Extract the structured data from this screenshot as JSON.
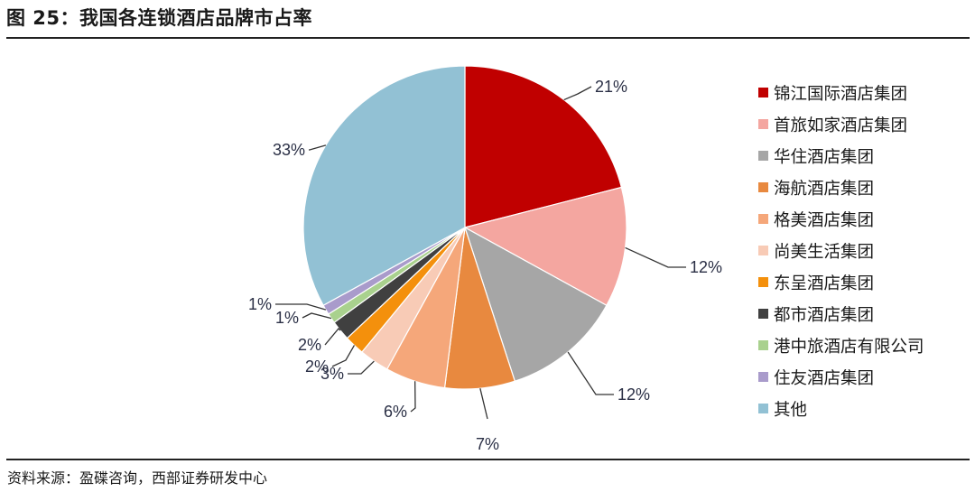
{
  "header": {
    "title": "图 25：我国各连锁酒店品牌市占率"
  },
  "footer": {
    "source": "资料来源：盈碟咨询，西部证券研发中心"
  },
  "chart_data": {
    "type": "pie",
    "title": "",
    "start_angle_deg": 0,
    "direction": "clockwise",
    "legend_position": "right",
    "slices": [
      {
        "name": "锦江国际酒店集团",
        "value": 21,
        "label": "21%",
        "color": "#C00000"
      },
      {
        "name": "首旅如家酒店集团",
        "value": 12,
        "label": "12%",
        "color": "#F4A6A0"
      },
      {
        "name": "华住酒店集团",
        "value": 12,
        "label": "12%",
        "color": "#A6A6A6"
      },
      {
        "name": "海航酒店集团",
        "value": 7,
        "label": "7%",
        "color": "#E8893F"
      },
      {
        "name": "格美酒店集团",
        "value": 6,
        "label": "6%",
        "color": "#F5A77A"
      },
      {
        "name": "尚美生活集团",
        "value": 3,
        "label": "3%",
        "color": "#F8CBB6"
      },
      {
        "name": "东呈酒店集团",
        "value": 2,
        "label": "2%",
        "color": "#F4900C"
      },
      {
        "name": "都市酒店集团",
        "value": 2,
        "label": "2%",
        "color": "#404040"
      },
      {
        "name": "港中旅酒店有限公司",
        "value": 1,
        "label": "1%",
        "color": "#A9D18E"
      },
      {
        "name": "住友酒店集团",
        "value": 1,
        "label": "1%",
        "color": "#A99BCB"
      },
      {
        "name": "其他",
        "value": 33,
        "label": "33%",
        "color": "#92C1D4"
      }
    ]
  }
}
